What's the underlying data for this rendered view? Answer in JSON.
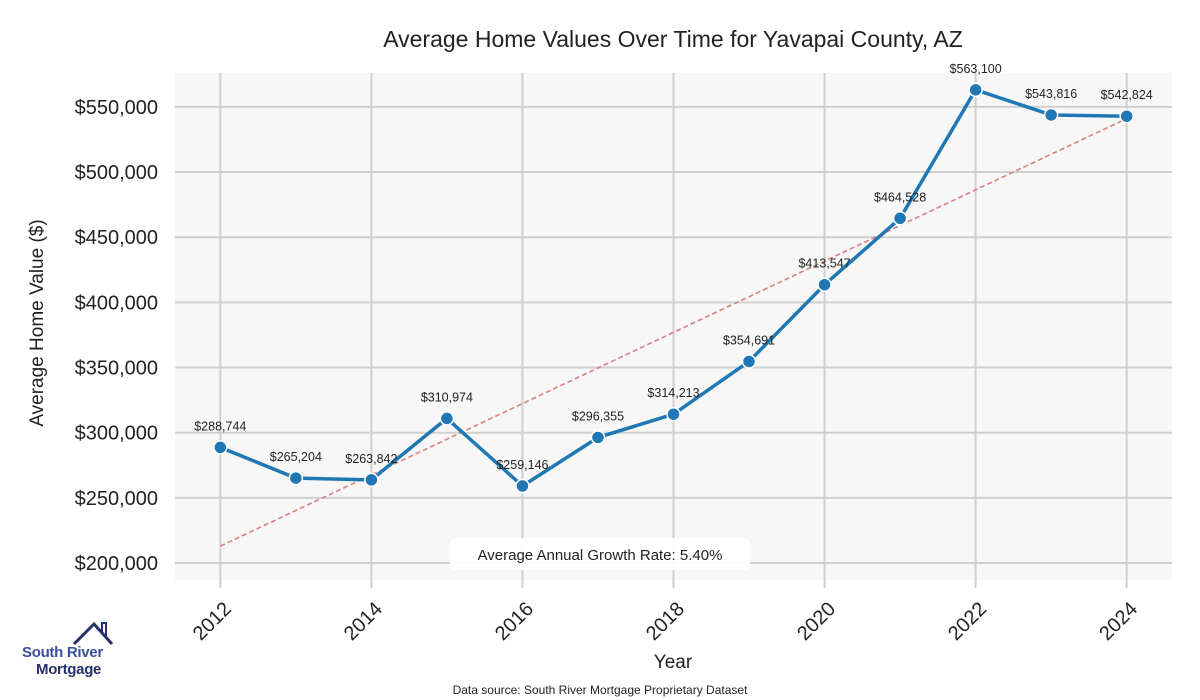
{
  "chart_data": {
    "type": "line",
    "title": "Average Home Values Over Time for Yavapai County, AZ",
    "xlabel": "Year",
    "ylabel": "Average Home Value ($)",
    "x": [
      2012,
      2013,
      2014,
      2015,
      2016,
      2017,
      2018,
      2019,
      2020,
      2021,
      2022,
      2023,
      2024
    ],
    "series": [
      {
        "name": "Average Home Value",
        "values": [
          288744,
          265204,
          263842,
          310974,
          259146,
          296355,
          314213,
          354691,
          413547,
          464528,
          563100,
          543816,
          542824
        ],
        "labels": [
          "$288,744",
          "$265,204",
          "$263,842",
          "$310,974",
          "$259,146",
          "$296,355",
          "$314,213",
          "$354,691",
          "$413,547",
          "$464,528",
          "$563,100",
          "$543,816",
          "$542,824"
        ],
        "color": "#1f77b4"
      }
    ],
    "trendline": {
      "name": "Trend",
      "start": [
        2012,
        213000
      ],
      "end": [
        2024,
        541000
      ],
      "color": "#d98080",
      "style": "dashed"
    },
    "xticks": [
      "2012",
      "2014",
      "2016",
      "2018",
      "2020",
      "2022",
      "2024"
    ],
    "xtick_values": [
      2012,
      2014,
      2016,
      2018,
      2020,
      2022,
      2024
    ],
    "yticks": [
      "$200,000",
      "$250,000",
      "$300,000",
      "$350,000",
      "$400,000",
      "$450,000",
      "$500,000",
      "$550,000"
    ],
    "ytick_values": [
      200000,
      250000,
      300000,
      350000,
      400000,
      450000,
      500000,
      550000
    ],
    "xlim": [
      2011.4,
      2024.6
    ],
    "ylim": [
      187000,
      576000
    ],
    "grid": true,
    "annotation": "Average Annual Growth Rate: 5.40%"
  },
  "footer": {
    "source": "Data source: South River Mortgage Proprietary Dataset",
    "logo_line1": "South River",
    "logo_line2": "Mortgage"
  }
}
